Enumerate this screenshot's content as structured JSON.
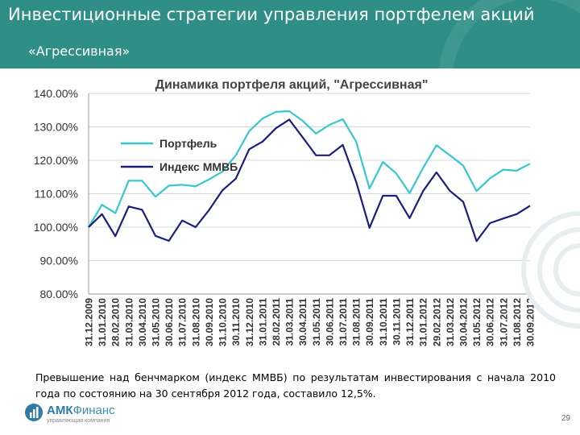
{
  "slide": {
    "title": "Инвестиционные стратегии управления портфелем акций",
    "subtitle": "«Агрессивная»",
    "caption": "Превышение над бенчмарком (индекс ММВБ) по результатам инвестирования с начала 2010 года по состоянию на 30 сентября 2012 года, составило 12,5%.",
    "page_number": "29",
    "logo": {
      "name_a": "АМК",
      "name_b": "Финанс",
      "tagline": "управляющая компания"
    }
  },
  "colors": {
    "header_bg": "#2f8f86",
    "portfolio": "#38c6cf",
    "index": "#1b1f7a"
  },
  "chart_data": {
    "type": "line",
    "title": "Динамика портфеля акций, \"Агрессивная\"",
    "ylim": [
      80,
      140
    ],
    "y_ticks": [
      "80.00%",
      "90.00%",
      "100.00%",
      "110.00%",
      "120.00%",
      "130.00%",
      "140.00%"
    ],
    "y_tick_values": [
      80,
      90,
      100,
      110,
      120,
      130,
      140
    ],
    "grid": true,
    "legend_position": "upper-left",
    "categories": [
      "31.12.2009",
      "31.01.2010",
      "28.02.2010",
      "31.03.2010",
      "30.04.2010",
      "31.05.2010",
      "30.06.2010",
      "31.07.2010",
      "31.08.2010",
      "30.09.2010",
      "31.10.2010",
      "30.11.2010",
      "31.12.2010",
      "31.01.2011",
      "28.02.2011",
      "31.03.2011",
      "30.04.2011",
      "31.05.2011",
      "30.06.2011",
      "31.07.2011",
      "31.08.2011",
      "30.09.2011",
      "31.10.2011",
      "30.11.2011",
      "31.12.2011",
      "31.01.2012",
      "29.02.2012",
      "31.03.2012",
      "30.04.2012",
      "31.05.2012",
      "30.06.2012",
      "31.07.2012",
      "31.08.2012",
      "30.09.2012"
    ],
    "series": [
      {
        "name": "Портфель",
        "color": "#38c6cf",
        "values": [
          100.0,
          106.7,
          104.2,
          113.9,
          113.9,
          109.1,
          112.4,
          112.7,
          112.2,
          114.3,
          116.6,
          121.5,
          128.7,
          132.5,
          134.5,
          134.7,
          131.8,
          128.0,
          130.6,
          132.3,
          125.6,
          111.6,
          119.5,
          116.1,
          110.2,
          117.7,
          124.5,
          121.5,
          118.4,
          110.8,
          114.6,
          117.2,
          116.9,
          119.0
        ]
      },
      {
        "name": "Индекс ММВБ",
        "color": "#1b1f7a",
        "values": [
          100.0,
          103.9,
          97.3,
          106.2,
          105.2,
          97.4,
          95.9,
          102.0,
          100.0,
          105.1,
          111.0,
          114.5,
          123.3,
          125.6,
          129.6,
          132.2,
          126.9,
          121.5,
          121.5,
          124.6,
          113.6,
          99.8,
          109.4,
          109.4,
          102.7,
          110.8,
          116.4,
          110.9,
          107.6,
          95.8,
          101.2,
          102.6,
          103.9,
          106.4
        ]
      }
    ]
  }
}
